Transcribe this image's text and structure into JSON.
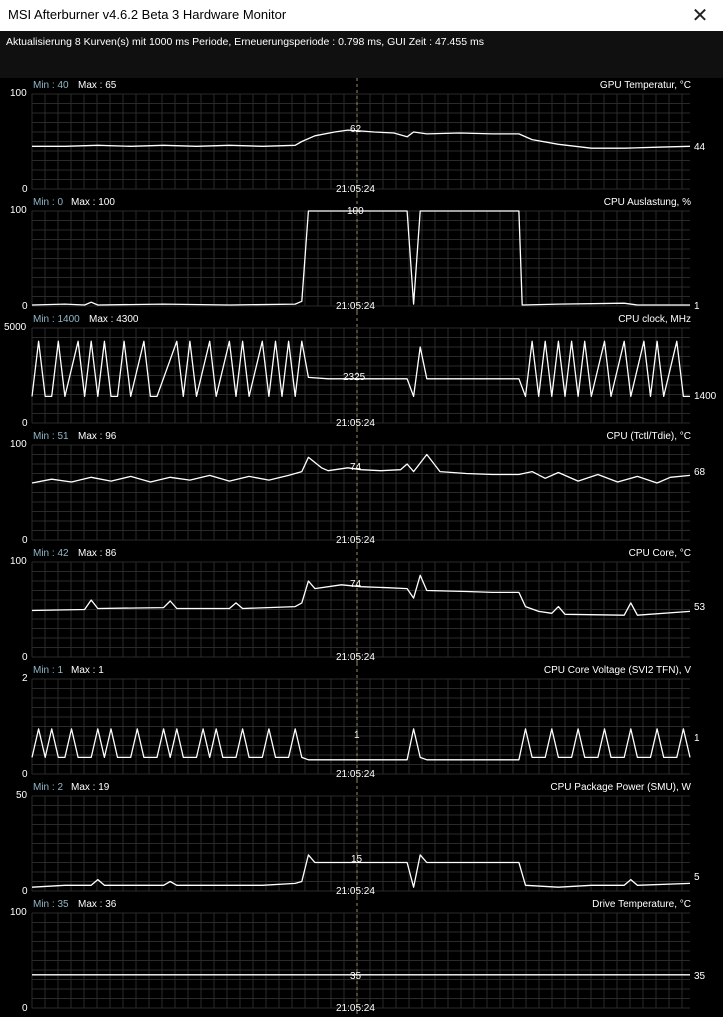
{
  "window": {
    "title": "MSI Afterburner v4.6.2 Beta 3 Hardware Monitor",
    "close_glyph": "✕"
  },
  "status": {
    "text": "Aktualisierung 8 Kurven(s) mit 1000 ms Periode, Erneuerungsperiode : 0.798 ms, GUI Zeit : 47.455 ms"
  },
  "colors": {
    "background": "#000000",
    "grid": "#2a2a2a",
    "curve": "#ffffff",
    "min_text": "#8fb7c8",
    "cursor": "#9a8a5a"
  },
  "cursor_time": "21:05:24",
  "graphs": [
    {
      "title": "GPU Temperatur, °C",
      "min_label": "Min : 40",
      "max_label": "Max : 65",
      "y_top": "100",
      "y_bottom": "0",
      "y_max": 100,
      "cursor_value": "62",
      "current_value": "44",
      "points": [
        [
          0,
          45
        ],
        [
          5,
          45
        ],
        [
          10,
          46
        ],
        [
          15,
          45
        ],
        [
          20,
          46
        ],
        [
          25,
          45
        ],
        [
          30,
          46
        ],
        [
          35,
          45
        ],
        [
          40,
          46
        ],
        [
          41,
          50
        ],
        [
          43,
          56
        ],
        [
          46,
          60
        ],
        [
          48,
          62
        ],
        [
          50,
          61
        ],
        [
          52,
          60
        ],
        [
          55,
          59
        ],
        [
          57,
          55
        ],
        [
          58,
          60
        ],
        [
          60,
          58
        ],
        [
          65,
          59
        ],
        [
          70,
          58
        ],
        [
          74,
          58
        ],
        [
          76,
          52
        ],
        [
          80,
          47
        ],
        [
          85,
          43
        ],
        [
          90,
          43
        ],
        [
          95,
          44
        ],
        [
          100,
          45
        ]
      ]
    },
    {
      "title": "CPU Auslastung, %",
      "min_label": "Min : 0",
      "max_label": "Max : 100",
      "y_top": "100",
      "y_bottom": "0",
      "y_max": 100,
      "cursor_value": "100",
      "current_value": "1",
      "points": [
        [
          0,
          1
        ],
        [
          5,
          2
        ],
        [
          8,
          1
        ],
        [
          9,
          4
        ],
        [
          10,
          1
        ],
        [
          20,
          2
        ],
        [
          30,
          1
        ],
        [
          40,
          2
        ],
        [
          41,
          5
        ],
        [
          42,
          100
        ],
        [
          57,
          100
        ],
        [
          58,
          2
        ],
        [
          59,
          100
        ],
        [
          74,
          100
        ],
        [
          74.5,
          1
        ],
        [
          80,
          2
        ],
        [
          90,
          3
        ],
        [
          92,
          1
        ],
        [
          100,
          1
        ]
      ]
    },
    {
      "title": "CPU clock, MHz",
      "min_label": "Min : 1400",
      "max_label": "Max : 4300",
      "y_top": "5000",
      "y_bottom": "0",
      "y_max": 5000,
      "cursor_value": "2325",
      "current_value": "1400",
      "points": [
        [
          0,
          1400
        ],
        [
          1,
          4300
        ],
        [
          2,
          1400
        ],
        [
          3,
          1400
        ],
        [
          4,
          4300
        ],
        [
          5,
          1400
        ],
        [
          7,
          4300
        ],
        [
          8,
          1400
        ],
        [
          9,
          4300
        ],
        [
          10,
          1400
        ],
        [
          11,
          4300
        ],
        [
          12,
          1400
        ],
        [
          13,
          1400
        ],
        [
          14,
          4300
        ],
        [
          15,
          1400
        ],
        [
          17,
          4300
        ],
        [
          18,
          1400
        ],
        [
          19,
          1400
        ],
        [
          22,
          4300
        ],
        [
          23,
          1400
        ],
        [
          24,
          4300
        ],
        [
          25,
          1400
        ],
        [
          27,
          4300
        ],
        [
          28,
          1400
        ],
        [
          30,
          4300
        ],
        [
          31,
          1400
        ],
        [
          32,
          4300
        ],
        [
          33,
          1400
        ],
        [
          35,
          4300
        ],
        [
          36,
          1400
        ],
        [
          37,
          4300
        ],
        [
          38,
          1400
        ],
        [
          39,
          4300
        ],
        [
          40,
          1400
        ],
        [
          41,
          4300
        ],
        [
          42,
          2400
        ],
        [
          45,
          2325
        ],
        [
          50,
          2325
        ],
        [
          55,
          2325
        ],
        [
          57,
          2325
        ],
        [
          58,
          1400
        ],
        [
          59,
          4000
        ],
        [
          60,
          2325
        ],
        [
          74,
          2325
        ],
        [
          75,
          1400
        ],
        [
          76,
          4300
        ],
        [
          77,
          1400
        ],
        [
          78,
          4300
        ],
        [
          79,
          1400
        ],
        [
          80,
          4300
        ],
        [
          81,
          1400
        ],
        [
          82,
          4300
        ],
        [
          83,
          1400
        ],
        [
          84,
          4300
        ],
        [
          85,
          1400
        ],
        [
          87,
          4300
        ],
        [
          88,
          1400
        ],
        [
          90,
          4300
        ],
        [
          91,
          1400
        ],
        [
          93,
          4300
        ],
        [
          94,
          1400
        ],
        [
          95,
          4300
        ],
        [
          96,
          1400
        ],
        [
          98,
          4300
        ],
        [
          99,
          1400
        ],
        [
          100,
          1400
        ]
      ]
    },
    {
      "title": "CPU (Tctl/Tdie), °C",
      "min_label": "Min : 51",
      "max_label": "Max : 96",
      "y_top": "100",
      "y_bottom": "0",
      "y_max": 100,
      "cursor_value": "74",
      "current_value": "68",
      "points": [
        [
          0,
          60
        ],
        [
          3,
          64
        ],
        [
          6,
          61
        ],
        [
          9,
          66
        ],
        [
          12,
          62
        ],
        [
          15,
          67
        ],
        [
          18,
          61
        ],
        [
          21,
          66
        ],
        [
          24,
          63
        ],
        [
          27,
          68
        ],
        [
          30,
          62
        ],
        [
          33,
          67
        ],
        [
          36,
          63
        ],
        [
          39,
          68
        ],
        [
          41,
          72
        ],
        [
          42,
          87
        ],
        [
          44,
          76
        ],
        [
          45,
          73
        ],
        [
          48,
          76
        ],
        [
          50,
          74
        ],
        [
          53,
          73
        ],
        [
          56,
          74
        ],
        [
          57,
          80
        ],
        [
          58,
          72
        ],
        [
          60,
          90
        ],
        [
          62,
          72
        ],
        [
          66,
          70
        ],
        [
          70,
          69
        ],
        [
          74,
          69
        ],
        [
          76,
          72
        ],
        [
          78,
          65
        ],
        [
          80,
          71
        ],
        [
          83,
          62
        ],
        [
          86,
          69
        ],
        [
          89,
          61
        ],
        [
          92,
          67
        ],
        [
          95,
          60
        ],
        [
          97,
          66
        ],
        [
          100,
          68
        ]
      ]
    },
    {
      "title": "CPU Core, °C",
      "min_label": "Min : 42",
      "max_label": "Max : 86",
      "y_top": "100",
      "y_bottom": "0",
      "y_max": 100,
      "cursor_value": "74",
      "current_value": "53",
      "points": [
        [
          0,
          49
        ],
        [
          8,
          50
        ],
        [
          9,
          60
        ],
        [
          10,
          51
        ],
        [
          20,
          52
        ],
        [
          21,
          59
        ],
        [
          22,
          51
        ],
        [
          30,
          51
        ],
        [
          31,
          57
        ],
        [
          32,
          51
        ],
        [
          40,
          53
        ],
        [
          41,
          57
        ],
        [
          42,
          80
        ],
        [
          43,
          72
        ],
        [
          47,
          76
        ],
        [
          50,
          74
        ],
        [
          54,
          73
        ],
        [
          57,
          72
        ],
        [
          58,
          62
        ],
        [
          59,
          86
        ],
        [
          60,
          70
        ],
        [
          66,
          69
        ],
        [
          70,
          68
        ],
        [
          74,
          68
        ],
        [
          75,
          53
        ],
        [
          77,
          48
        ],
        [
          79,
          46
        ],
        [
          80,
          53
        ],
        [
          81,
          45
        ],
        [
          90,
          44
        ],
        [
          91,
          57
        ],
        [
          92,
          44
        ],
        [
          100,
          48
        ]
      ]
    },
    {
      "title": "CPU Core Voltage (SVI2 TFN), V",
      "min_label": "Min : 1",
      "max_label": "Max : 1",
      "y_top": "2",
      "y_bottom": "0",
      "y_max": 2,
      "cursor_value": "1",
      "current_value": "1",
      "points": [
        [
          0,
          0.35
        ],
        [
          1,
          0.95
        ],
        [
          2,
          0.35
        ],
        [
          3,
          0.95
        ],
        [
          4,
          0.35
        ],
        [
          5,
          0.35
        ],
        [
          6,
          0.95
        ],
        [
          7,
          0.35
        ],
        [
          9,
          0.35
        ],
        [
          10,
          0.95
        ],
        [
          11,
          0.35
        ],
        [
          12,
          0.95
        ],
        [
          13,
          0.35
        ],
        [
          15,
          0.35
        ],
        [
          16,
          0.95
        ],
        [
          17,
          0.35
        ],
        [
          19,
          0.35
        ],
        [
          20,
          0.95
        ],
        [
          21,
          0.35
        ],
        [
          22,
          0.95
        ],
        [
          23,
          0.35
        ],
        [
          25,
          0.35
        ],
        [
          26,
          0.95
        ],
        [
          27,
          0.35
        ],
        [
          28,
          0.95
        ],
        [
          29,
          0.35
        ],
        [
          31,
          0.35
        ],
        [
          32,
          0.95
        ],
        [
          33,
          0.35
        ],
        [
          35,
          0.35
        ],
        [
          36,
          0.95
        ],
        [
          37,
          0.35
        ],
        [
          39,
          0.35
        ],
        [
          40,
          0.95
        ],
        [
          41,
          0.35
        ],
        [
          42,
          0.3
        ],
        [
          50,
          0.3
        ],
        [
          57,
          0.3
        ],
        [
          58,
          0.95
        ],
        [
          59,
          0.35
        ],
        [
          60,
          0.3
        ],
        [
          74,
          0.3
        ],
        [
          75,
          0.95
        ],
        [
          76,
          0.35
        ],
        [
          78,
          0.35
        ],
        [
          79,
          0.95
        ],
        [
          80,
          0.35
        ],
        [
          82,
          0.35
        ],
        [
          83,
          0.95
        ],
        [
          84,
          0.35
        ],
        [
          86,
          0.35
        ],
        [
          87,
          0.95
        ],
        [
          88,
          0.35
        ],
        [
          90,
          0.35
        ],
        [
          91,
          0.95
        ],
        [
          92,
          0.35
        ],
        [
          94,
          0.35
        ],
        [
          95,
          0.95
        ],
        [
          96,
          0.35
        ],
        [
          98,
          0.35
        ],
        [
          99,
          0.95
        ],
        [
          100,
          0.35
        ]
      ]
    },
    {
      "title": "CPU Package Power (SMU), W",
      "min_label": "Min : 2",
      "max_label": "Max : 19",
      "y_top": "50",
      "y_bottom": "0",
      "y_max": 50,
      "cursor_value": "15",
      "current_value": "5",
      "points": [
        [
          0,
          2
        ],
        [
          5,
          3
        ],
        [
          9,
          3
        ],
        [
          10,
          6
        ],
        [
          11,
          3
        ],
        [
          20,
          3
        ],
        [
          21,
          5
        ],
        [
          22,
          3
        ],
        [
          30,
          3
        ],
        [
          35,
          3
        ],
        [
          40,
          4
        ],
        [
          41,
          5
        ],
        [
          42,
          19
        ],
        [
          43,
          15
        ],
        [
          50,
          15
        ],
        [
          57,
          15
        ],
        [
          58,
          2
        ],
        [
          59,
          19
        ],
        [
          60,
          15
        ],
        [
          74,
          15
        ],
        [
          75,
          3
        ],
        [
          80,
          2
        ],
        [
          85,
          3
        ],
        [
          90,
          3
        ],
        [
          91,
          6
        ],
        [
          92,
          3
        ],
        [
          100,
          4
        ]
      ]
    },
    {
      "title": "Drive Temperature, °C",
      "min_label": "Min : 35",
      "max_label": "Max : 36",
      "y_top": "100",
      "y_bottom": "0",
      "y_max": 100,
      "cursor_value": "35",
      "current_value": "35",
      "points": [
        [
          0,
          35
        ],
        [
          10,
          35
        ],
        [
          20,
          35
        ],
        [
          30,
          35
        ],
        [
          40,
          35
        ],
        [
          50,
          35
        ],
        [
          60,
          35
        ],
        [
          70,
          35
        ],
        [
          80,
          35
        ],
        [
          90,
          35
        ],
        [
          100,
          35
        ]
      ]
    }
  ]
}
